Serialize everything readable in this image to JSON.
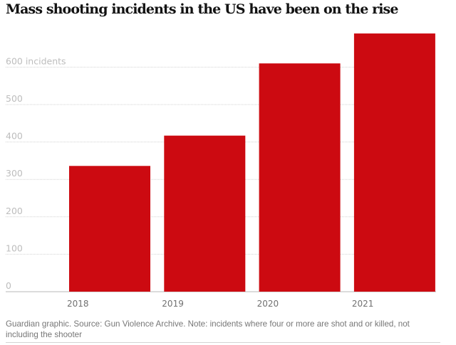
{
  "chart_data": {
    "type": "bar",
    "title": "Mass shooting incidents in the US have been on the rise",
    "categories": [
      "2018",
      "2019",
      "2020",
      "2021"
    ],
    "values": [
      336,
      417,
      610,
      690
    ],
    "xlabel": "",
    "ylabel": "incidents",
    "ylim": [
      0,
      700
    ],
    "yticks": [
      0,
      100,
      200,
      300,
      400,
      500,
      600
    ],
    "ytick_labels": [
      "0",
      "100",
      "200",
      "300",
      "400",
      "500",
      "600 incidents"
    ],
    "grid": true,
    "bar_color": "#cc0a11",
    "source": "Guardian graphic. Source: Gun Violence Archive. Note: incidents where four or more are shot and or killed, not including the shooter"
  }
}
